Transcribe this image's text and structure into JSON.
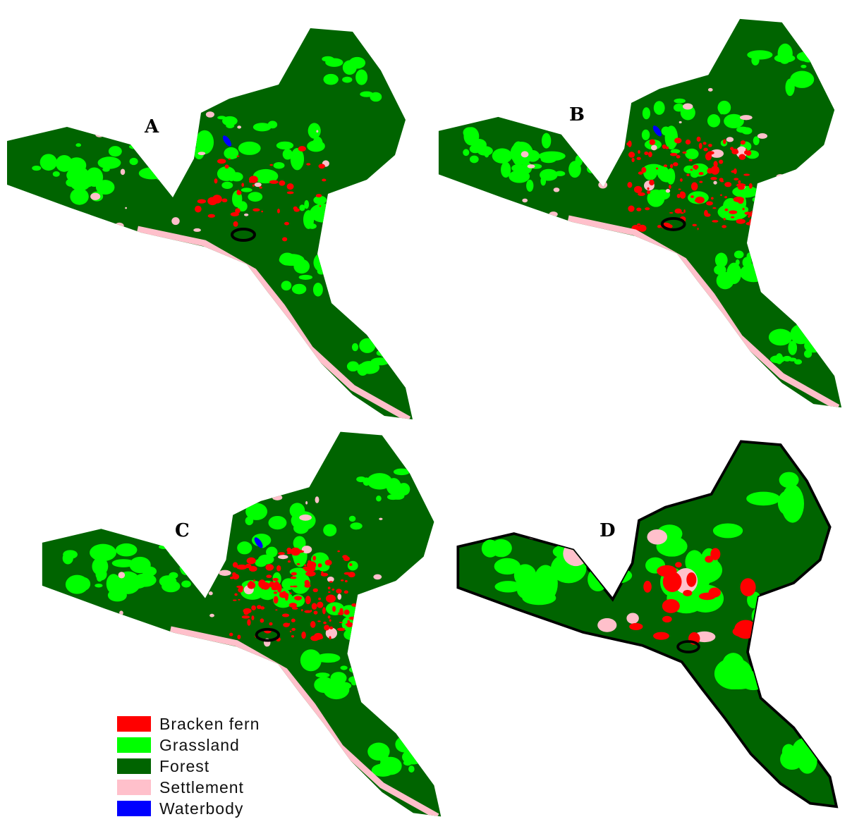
{
  "panels": [
    {
      "id": "A",
      "label": "A"
    },
    {
      "id": "B",
      "label": "B"
    },
    {
      "id": "C",
      "label": "C"
    },
    {
      "id": "D",
      "label": "D"
    }
  ],
  "legend": {
    "items": [
      {
        "label": "Bracken fern",
        "color": "#ff0000"
      },
      {
        "label": "Grassland",
        "color": "#00ff00"
      },
      {
        "label": "Forest",
        "color": "#006400"
      },
      {
        "label": "Settlement",
        "color": "#ffc0cb"
      },
      {
        "label": "Waterbody",
        "color": "#0000ff"
      }
    ]
  }
}
